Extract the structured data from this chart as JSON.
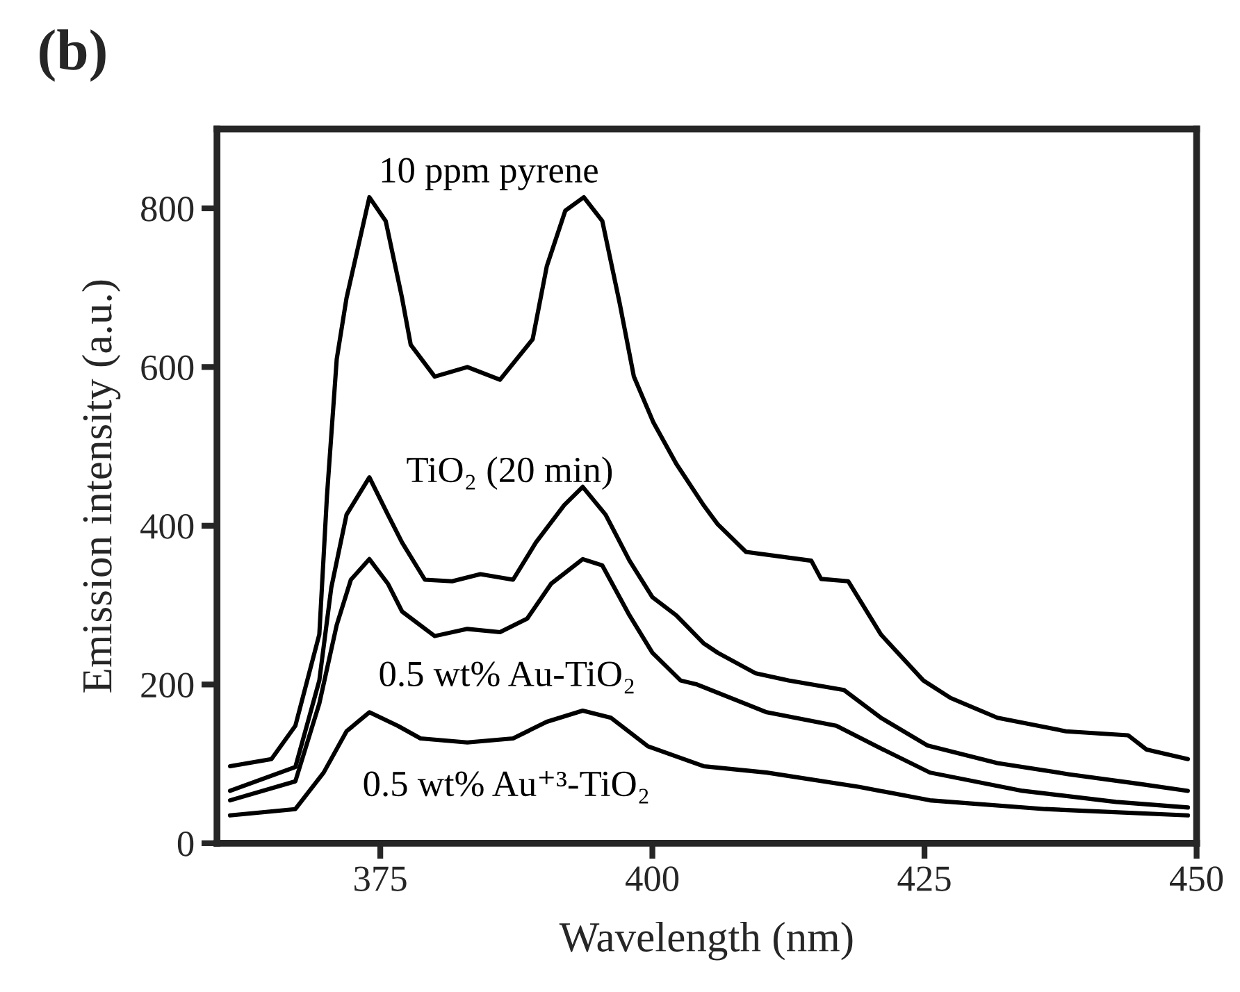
{
  "chart_data": {
    "type": "line",
    "title": "(b)",
    "xlabel": "Wavelength (nm)",
    "ylabel": "Emission intensity (a.u.)",
    "xlim": [
      360,
      450
    ],
    "xticks": [
      375,
      400,
      425,
      450
    ],
    "ylim": [
      0,
      900
    ],
    "yticks": [
      0,
      200,
      400,
      600,
      800
    ],
    "grid": false,
    "legend": false,
    "marker": "none",
    "line_style": "solid",
    "series": [
      {
        "name": "10 ppm pyrene",
        "color": "#000000",
        "x": [
          361.2,
          365,
          367.2,
          369.4,
          370.1,
          371,
          371.9,
          374,
          375.5,
          377,
          377.8,
          380,
          383,
          386,
          389,
          390.3,
          392,
          393.7,
          395.4,
          397,
          398.3,
          400.1,
          402.2,
          404.7,
          406,
          408.6,
          414.6,
          415.5,
          418,
          421,
          424.9,
          427.4,
          431.7,
          438,
          443.7,
          445.4,
          449.2
        ],
        "values": [
          97,
          106,
          148,
          263,
          437,
          610,
          687,
          814,
          784,
          687,
          628,
          588,
          600,
          584,
          635,
          727,
          797,
          814,
          784,
          680,
          588,
          530,
          478,
          426,
          402,
          367,
          356,
          333,
          330,
          263,
          205,
          183,
          158,
          141,
          136,
          118,
          106
        ]
      },
      {
        "name": "TiO₂ (20 min)",
        "color": "#000000",
        "x": [
          361.2,
          367.2,
          369.4,
          370.5,
          371.9,
          374,
          375.7,
          377,
          379.1,
          381.6,
          384.2,
          387.2,
          389.3,
          391.9,
          393.6,
          395.7,
          397.9,
          400,
          402.2,
          404.7,
          406,
          409.5,
          412.5,
          417.6,
          421,
          425.3,
          431.7,
          438.2,
          444.6,
          449.2
        ],
        "values": [
          66,
          96,
          205,
          322,
          414,
          461,
          414,
          379,
          332,
          330,
          339,
          332,
          379,
          426,
          449,
          414,
          356,
          310,
          287,
          252,
          240,
          214,
          205,
          193,
          158,
          123,
          101,
          87,
          75,
          66
        ]
      },
      {
        "name": "0.5 wt% Au-TiO₂",
        "color": "#000000",
        "x": [
          361.2,
          367.2,
          369.4,
          371,
          372.3,
          374,
          375.7,
          377,
          380,
          383,
          386,
          388.5,
          390.7,
          393.6,
          395.4,
          397.9,
          400,
          402.6,
          404.1,
          410.5,
          416.9,
          421.2,
          425.5,
          434,
          442.6,
          449.2
        ],
        "values": [
          54,
          78,
          176,
          275,
          332,
          358,
          327,
          292,
          261,
          270,
          266,
          283,
          327,
          358,
          350,
          287,
          240,
          205,
          200,
          165,
          148,
          118,
          89,
          66,
          52,
          45
        ]
      },
      {
        "name": "0.5 wt% Au⁺³-TiO₂",
        "color": "#000000",
        "x": [
          361.2,
          367.2,
          369.8,
          371.9,
          374,
          376.6,
          378.7,
          383,
          387.2,
          390.3,
          393.6,
          396.2,
          399.6,
          404.7,
          410.5,
          419,
          425.5,
          436.1,
          449.2
        ],
        "values": [
          35,
          43,
          89,
          141,
          165,
          148,
          132,
          127,
          132,
          153,
          167,
          158,
          122,
          97,
          89,
          71,
          54,
          43,
          35
        ]
      }
    ]
  }
}
